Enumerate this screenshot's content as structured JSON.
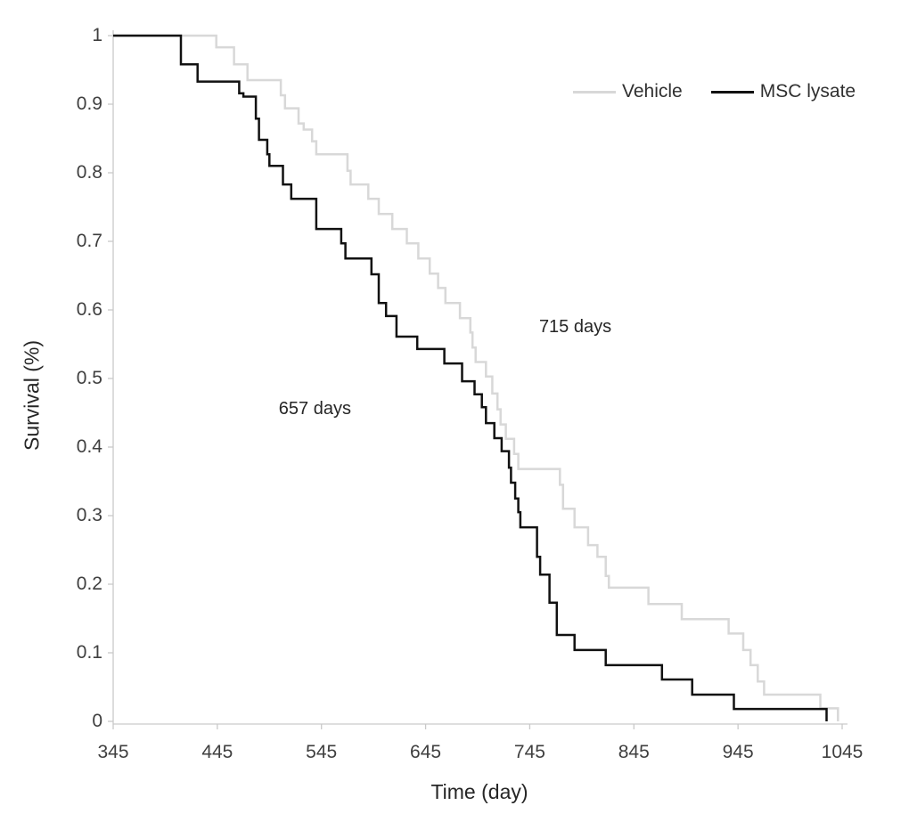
{
  "chart_data": {
    "type": "line",
    "subtype": "kaplan-meier-step",
    "title": "",
    "xlabel": "Time (day)",
    "ylabel": "Survival (%)",
    "xlim": [
      345,
      1045
    ],
    "ylim": [
      0,
      1
    ],
    "grid": false,
    "legend_position": "top-right-inside",
    "x_ticks": [
      345,
      445,
      545,
      645,
      745,
      845,
      945,
      1045
    ],
    "x_tick_labels": [
      "345",
      "445",
      "545",
      "645",
      "745",
      "845",
      "945",
      "1045"
    ],
    "y_ticks": [
      0,
      0.1,
      0.2,
      0.3,
      0.4,
      0.5,
      0.6,
      0.7,
      0.8,
      0.9,
      1
    ],
    "y_tick_labels": [
      "0",
      "0.1",
      "0.2",
      "0.3",
      "0.4",
      "0.5",
      "0.6",
      "0.7",
      "0.8",
      "0.9",
      "1"
    ],
    "series": [
      {
        "name": "Vehicle",
        "color": "#d8d8d8",
        "points": [
          [
            345,
            1
          ],
          [
            444,
            0.983
          ],
          [
            461,
            0.958
          ],
          [
            474,
            0.935
          ],
          [
            506,
            0.913
          ],
          [
            510,
            0.894
          ],
          [
            523,
            0.872
          ],
          [
            528,
            0.863
          ],
          [
            536,
            0.846
          ],
          [
            540,
            0.827
          ],
          [
            570,
            0.803
          ],
          [
            573,
            0.783
          ],
          [
            590,
            0.762
          ],
          [
            600,
            0.74
          ],
          [
            613,
            0.718
          ],
          [
            627,
            0.697
          ],
          [
            638,
            0.675
          ],
          [
            649,
            0.653
          ],
          [
            657,
            0.632
          ],
          [
            664,
            0.61
          ],
          [
            678,
            0.588
          ],
          [
            688,
            0.567
          ],
          [
            690,
            0.545
          ],
          [
            693,
            0.524
          ],
          [
            703,
            0.503
          ],
          [
            709,
            0.478
          ],
          [
            714,
            0.455
          ],
          [
            717,
            0.433
          ],
          [
            722,
            0.412
          ],
          [
            730,
            0.39
          ],
          [
            734,
            0.368
          ],
          [
            774,
            0.345
          ],
          [
            777,
            0.31
          ],
          [
            788,
            0.283
          ],
          [
            801,
            0.257
          ],
          [
            810,
            0.24
          ],
          [
            818,
            0.212
          ],
          [
            821,
            0.195
          ],
          [
            859,
            0.171
          ],
          [
            891,
            0.149
          ],
          [
            936,
            0.128
          ],
          [
            950,
            0.104
          ],
          [
            957,
            0.082
          ],
          [
            964,
            0.058
          ],
          [
            970,
            0.039
          ],
          [
            1024,
            0.019
          ],
          [
            1041,
            0
          ]
        ]
      },
      {
        "name": "MSC lysate",
        "color": "#111111",
        "points": [
          [
            345,
            1
          ],
          [
            410,
            0.958
          ],
          [
            426,
            0.933
          ],
          [
            466,
            0.916
          ],
          [
            470,
            0.911
          ],
          [
            482,
            0.879
          ],
          [
            485,
            0.848
          ],
          [
            493,
            0.827
          ],
          [
            495,
            0.81
          ],
          [
            508,
            0.783
          ],
          [
            516,
            0.762
          ],
          [
            540,
            0.718
          ],
          [
            564,
            0.697
          ],
          [
            568,
            0.675
          ],
          [
            593,
            0.652
          ],
          [
            600,
            0.61
          ],
          [
            607,
            0.591
          ],
          [
            617,
            0.561
          ],
          [
            637,
            0.543
          ],
          [
            663,
            0.522
          ],
          [
            680,
            0.496
          ],
          [
            692,
            0.477
          ],
          [
            699,
            0.458
          ],
          [
            703,
            0.435
          ],
          [
            711,
            0.413
          ],
          [
            718,
            0.394
          ],
          [
            725,
            0.37
          ],
          [
            727,
            0.348
          ],
          [
            731,
            0.325
          ],
          [
            734,
            0.305
          ],
          [
            736,
            0.283
          ],
          [
            752,
            0.24
          ],
          [
            755,
            0.214
          ],
          [
            764,
            0.173
          ],
          [
            771,
            0.126
          ],
          [
            788,
            0.104
          ],
          [
            818,
            0.082
          ],
          [
            872,
            0.061
          ],
          [
            901,
            0.039
          ],
          [
            941,
            0.018
          ],
          [
            1030,
            0
          ]
        ]
      }
    ],
    "annotations": [
      {
        "text": "657 days",
        "day": 504,
        "survival": 0.47
      },
      {
        "text": "715 days",
        "day": 754,
        "survival": 0.59
      }
    ]
  },
  "style": {
    "axis_color": "#c9c9c9",
    "tick_text_color": "#3f3f3f",
    "line_width": 2.5
  }
}
